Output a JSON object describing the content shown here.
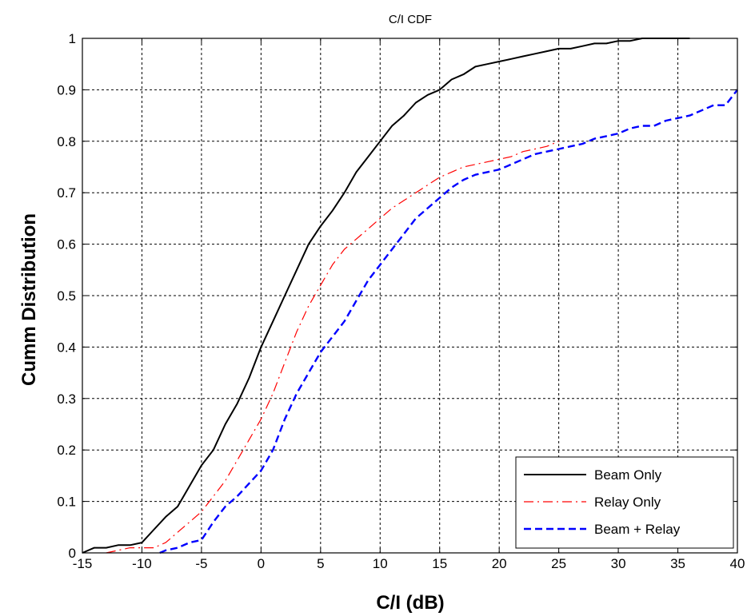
{
  "chart_data": {
    "type": "line",
    "title": "C/I CDF",
    "xlabel": "C/I (dB)",
    "ylabel": "Cumm Distribution",
    "xlim": [
      -15,
      40
    ],
    "ylim": [
      0,
      1
    ],
    "xticks": [
      "-15",
      "-10",
      "-5",
      "0",
      "5",
      "10",
      "15",
      "20",
      "25",
      "30",
      "35",
      "40"
    ],
    "yticks": [
      "0",
      "0.1",
      "0.2",
      "0.3",
      "0.4",
      "0.5",
      "0.6",
      "0.7",
      "0.8",
      "0.9",
      "1"
    ],
    "grid": true,
    "legend_position": "bottom-right",
    "series": [
      {
        "name": "Beam Only",
        "color": "#000000",
        "style": "solid",
        "x": [
          -15,
          -14,
          -13,
          -12,
          -11,
          -10,
          -9,
          -8,
          -7,
          -6,
          -5,
          -4,
          -3,
          -2,
          -1,
          0,
          1,
          2,
          3,
          4,
          5,
          6,
          7,
          8,
          9,
          10,
          11,
          12,
          13,
          14,
          15,
          16,
          17,
          18,
          19,
          20,
          21,
          22,
          23,
          24,
          25,
          26,
          27,
          28,
          29,
          30,
          31,
          32,
          33,
          34,
          35,
          36
        ],
        "y": [
          0,
          0.01,
          0.01,
          0.015,
          0.015,
          0.02,
          0.045,
          0.07,
          0.09,
          0.13,
          0.17,
          0.2,
          0.25,
          0.29,
          0.34,
          0.4,
          0.45,
          0.5,
          0.55,
          0.6,
          0.635,
          0.665,
          0.7,
          0.74,
          0.77,
          0.8,
          0.83,
          0.85,
          0.875,
          0.89,
          0.9,
          0.92,
          0.93,
          0.945,
          0.95,
          0.955,
          0.96,
          0.965,
          0.97,
          0.975,
          0.98,
          0.98,
          0.985,
          0.99,
          0.99,
          0.995,
          0.995,
          1.0,
          1.0,
          1.0,
          1.0,
          1.0
        ]
      },
      {
        "name": "Relay Only",
        "color": "#ff0000",
        "style": "dashdot",
        "x": [
          -13,
          -12,
          -11,
          -10,
          -9,
          -8,
          -7,
          -6,
          -5,
          -4,
          -3,
          -2,
          -1,
          0,
          1,
          2,
          3,
          4,
          5,
          6,
          7,
          8,
          9,
          10,
          11,
          12,
          13,
          14,
          15,
          16,
          17,
          18,
          19,
          20,
          21,
          22,
          23,
          24,
          25
        ],
        "y": [
          0,
          0.005,
          0.01,
          0.01,
          0.01,
          0.02,
          0.04,
          0.06,
          0.08,
          0.11,
          0.14,
          0.18,
          0.22,
          0.26,
          0.31,
          0.37,
          0.43,
          0.48,
          0.52,
          0.56,
          0.59,
          0.61,
          0.63,
          0.65,
          0.67,
          0.685,
          0.7,
          0.715,
          0.73,
          0.74,
          0.75,
          0.755,
          0.76,
          0.765,
          0.77,
          0.78,
          0.785,
          0.79,
          0.8
        ]
      },
      {
        "name": "Beam + Relay",
        "color": "#0000ff",
        "style": "dashed",
        "x": [
          -8.5,
          -8,
          -7,
          -6,
          -5,
          -4,
          -3,
          -2,
          -1,
          0,
          1,
          2,
          3,
          4,
          5,
          6,
          7,
          8,
          9,
          10,
          11,
          12,
          13,
          14,
          15,
          16,
          17,
          18,
          19,
          20,
          21,
          22,
          23,
          24,
          25,
          26,
          27,
          28,
          29,
          30,
          31,
          32,
          33,
          34,
          35,
          36,
          37,
          38,
          39,
          40
        ],
        "y": [
          0,
          0.005,
          0.01,
          0.02,
          0.025,
          0.06,
          0.09,
          0.11,
          0.135,
          0.16,
          0.2,
          0.26,
          0.31,
          0.35,
          0.39,
          0.42,
          0.45,
          0.49,
          0.53,
          0.56,
          0.59,
          0.62,
          0.65,
          0.67,
          0.69,
          0.71,
          0.725,
          0.735,
          0.74,
          0.745,
          0.755,
          0.765,
          0.775,
          0.78,
          0.785,
          0.79,
          0.795,
          0.805,
          0.81,
          0.815,
          0.825,
          0.83,
          0.83,
          0.84,
          0.845,
          0.85,
          0.86,
          0.87,
          0.87,
          0.9
        ]
      }
    ]
  }
}
